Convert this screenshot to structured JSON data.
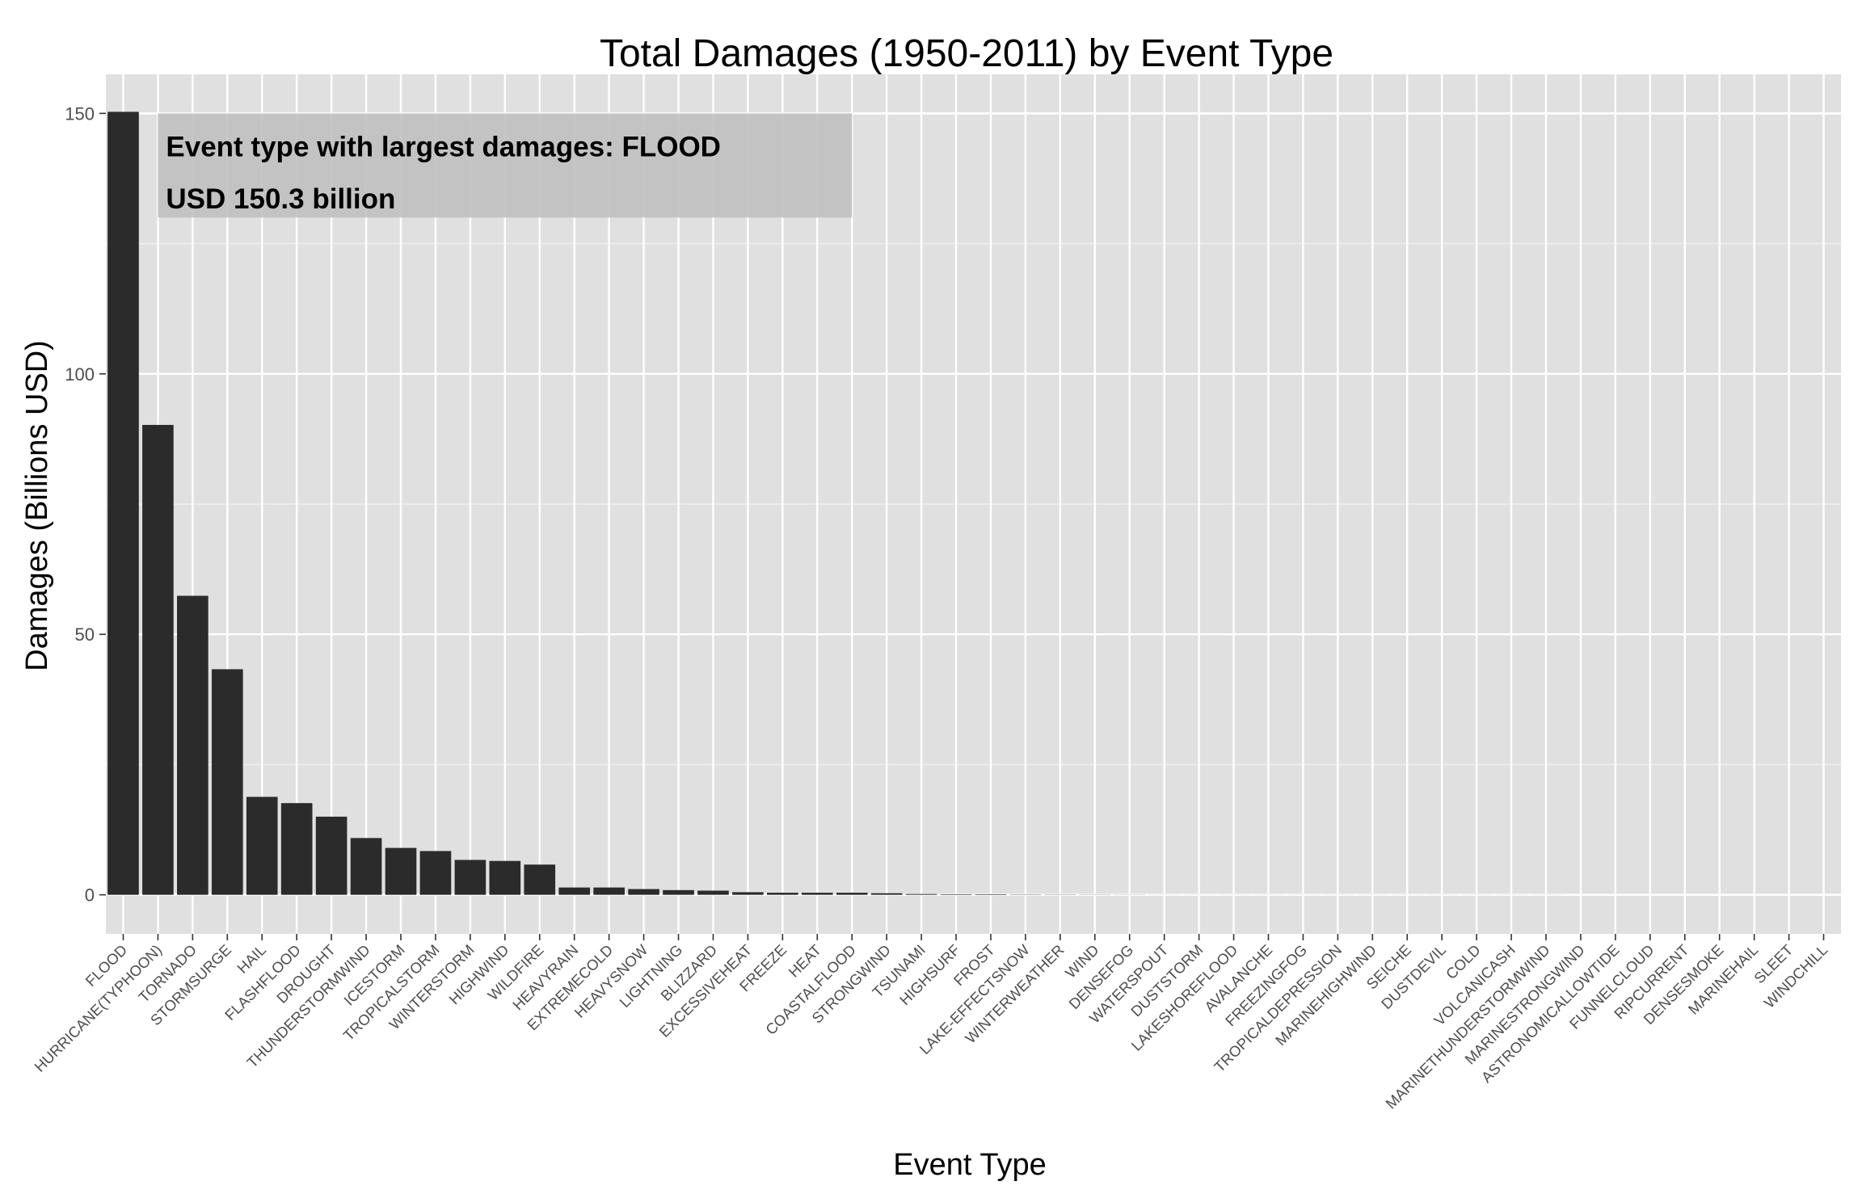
{
  "chart_data": {
    "type": "bar",
    "title": "Total Damages (1950-2011) by Event Type",
    "xlabel": "Event Type",
    "ylabel": "Damages (Billions USD)",
    "ylim": [
      -7.5,
      157.5
    ],
    "yticks": [
      0,
      50,
      100,
      150
    ],
    "grid": true,
    "legend": "none",
    "colors": {
      "bar": "#2b2b2b",
      "panel": "#e0e0e0",
      "grid_major": "#ffffff",
      "grid_minor": "#efefef",
      "annotation_box": "#bdbdbd"
    },
    "categories": [
      "FLOOD",
      "HURRICANE(TYPHOON)",
      "TORNADO",
      "STORMSURGE",
      "HAIL",
      "FLASHFLOOD",
      "DROUGHT",
      "THUNDERSTORMWIND",
      "ICESTORM",
      "TROPICALSTORM",
      "WINTERSTORM",
      "HIGHWIND",
      "WILDFIRE",
      "HEAVYRAIN",
      "EXTREMECOLD",
      "HEAVYSNOW",
      "LIGHTNING",
      "BLIZZARD",
      "EXCESSIVEHEAT",
      "FREEZE",
      "HEAT",
      "COASTALFLOOD",
      "STRONGWIND",
      "TSUNAMI",
      "HIGHSURF",
      "FROST",
      "LAKE-EFFECTSNOW",
      "WINTERWEATHER",
      "WIND",
      "DENSEFOG",
      "WATERSPOUT",
      "DUSTSTORM",
      "LAKESHOREFLOOD",
      "AVALANCHE",
      "FREEZINGFOG",
      "TROPICALDEPRESSION",
      "MARINEHIGHWIND",
      "SEICHE",
      "DUSTDEVIL",
      "COLD",
      "VOLCANICASH",
      "MARINETHUNDERSTORMWIND",
      "MARINESTRONGWIND",
      "ASTRONOMICALLOWTIDE",
      "FUNNELCLOUD",
      "RIPCURRENT",
      "DENSESMOKE",
      "MARINEHAIL",
      "SLEET",
      "WINDCHILL"
    ],
    "values": [
      150.3,
      90.2,
      57.4,
      43.3,
      18.8,
      17.6,
      15.0,
      10.9,
      9.0,
      8.4,
      6.7,
      6.5,
      5.8,
      1.4,
      1.4,
      1.1,
      0.9,
      0.8,
      0.5,
      0.4,
      0.4,
      0.4,
      0.3,
      0.15,
      0.1,
      0.1,
      0.05,
      0.04,
      0.03,
      0.02,
      0.01,
      0.01,
      0.01,
      0.01,
      0.01,
      0.01,
      0.01,
      0.01,
      0.01,
      0.01,
      0.01,
      0.01,
      0.0,
      0.0,
      0.0,
      0.0,
      0.0,
      0.0,
      0.0,
      0.0
    ],
    "annotations": [
      "Event type with largest damages: FLOOD",
      "USD 150.3 billion"
    ]
  }
}
